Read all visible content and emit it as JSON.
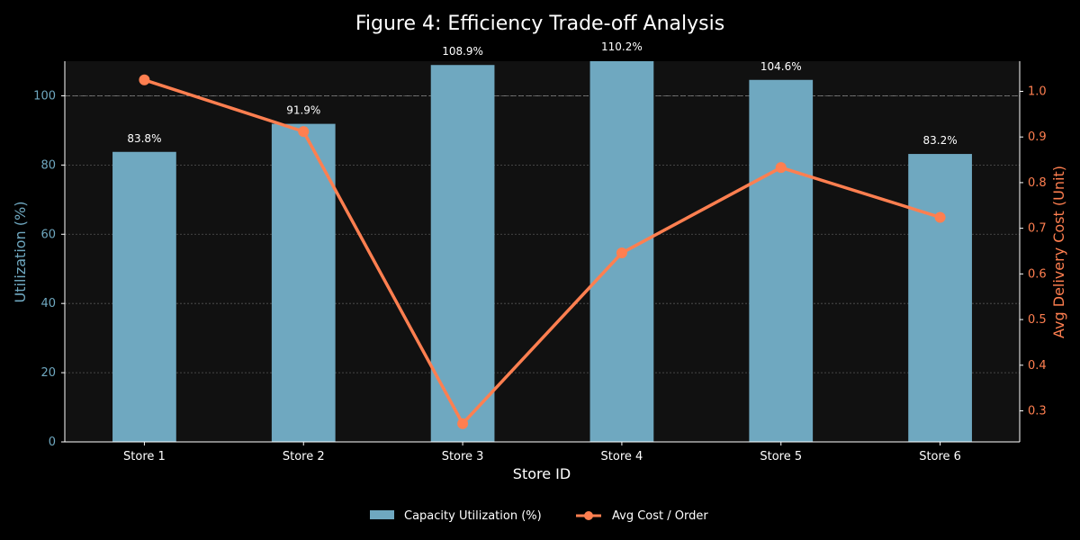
{
  "chart_data": {
    "type": "bar",
    "title": "Figure 4: Efficiency Trade-off Analysis",
    "xlabel": "Store ID",
    "ylabel": "Utilization (%)",
    "y2label": "Avg Delivery Cost (Unit)",
    "categories": [
      "Store 1",
      "Store 2",
      "Store 3",
      "Store 4",
      "Store 5",
      "Store 6"
    ],
    "ylim": [
      0,
      110
    ],
    "y2lim": [
      0.232,
      1.066
    ],
    "yticks": [
      "0",
      "20",
      "40",
      "60",
      "80",
      "100"
    ],
    "y2ticks": [
      "0.3",
      "0.4",
      "0.5",
      "0.6",
      "0.7",
      "0.8",
      "0.9",
      "1.0"
    ],
    "reference_line_y": 100,
    "grid": true,
    "legend_position": "bottom-center",
    "series": [
      {
        "name": "Capacity Utilization (%)",
        "type": "bar",
        "axis": "left",
        "values": [
          83.8,
          91.9,
          108.9,
          110.2,
          104.6,
          83.2
        ],
        "labels": [
          "83.8%",
          "91.9%",
          "108.9%",
          "110.2%",
          "104.6%",
          "83.2%"
        ],
        "color": "#6fa8c0"
      },
      {
        "name": "Avg Cost / Order",
        "type": "line",
        "axis": "right",
        "values": [
          1.025,
          0.912,
          0.272,
          0.646,
          0.833,
          0.724
        ],
        "color": "#ff7f50"
      }
    ],
    "colors": {
      "background": "#000000",
      "plot_background": "#111111",
      "left_axis": "#6fa8c0",
      "right_axis": "#ff7f50",
      "text": "#ffffff"
    }
  }
}
